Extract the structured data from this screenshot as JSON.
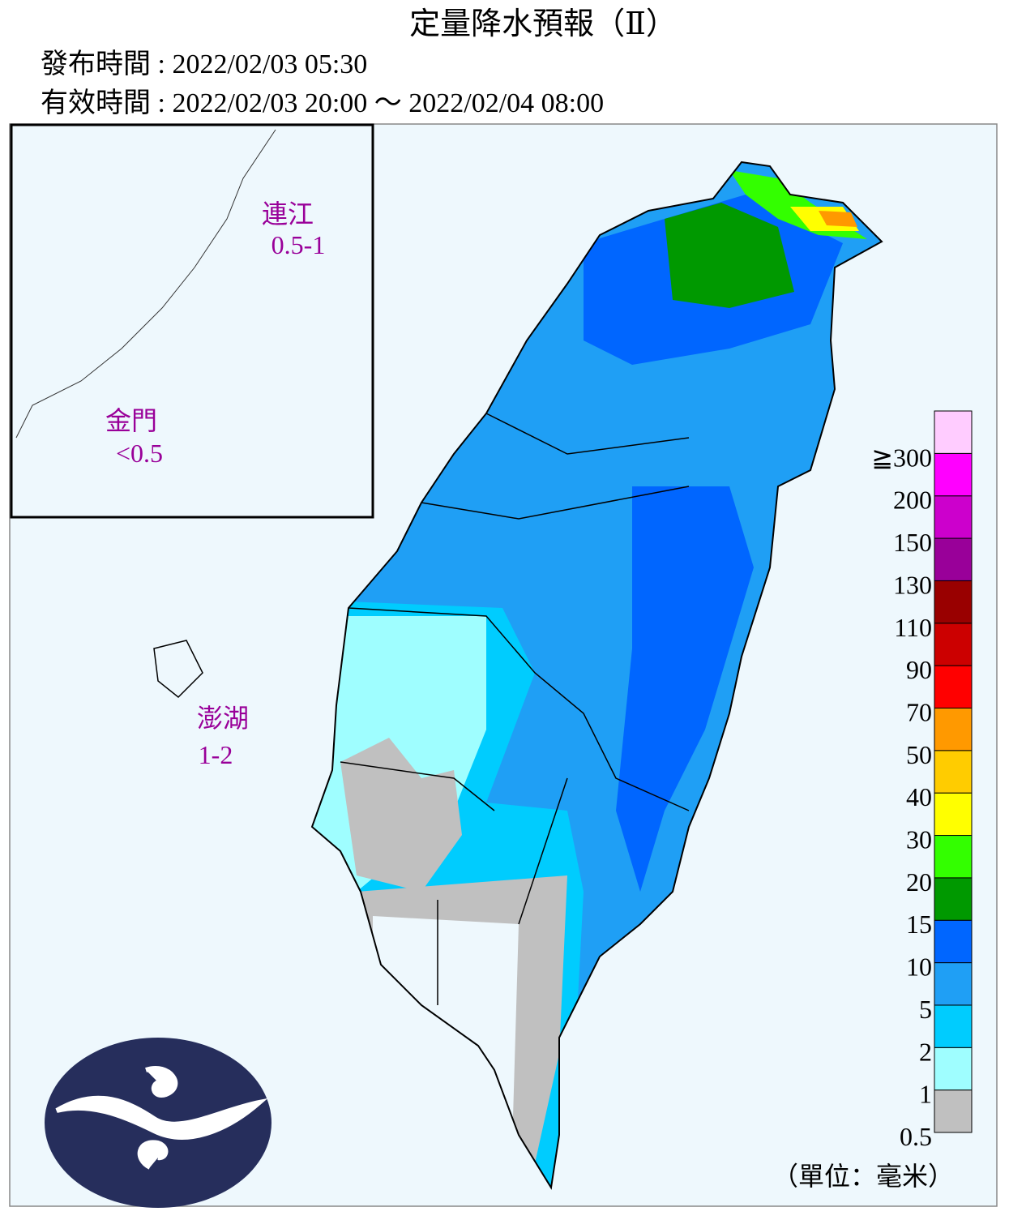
{
  "header": {
    "title": "定量降水預報（Ⅱ）",
    "issued": "發布時間 : 2022/02/03 05:30",
    "valid": "有效時間 : 2022/02/03 20:00 ～ 2022/02/04 08:00"
  },
  "regions": [
    {
      "name": "連江",
      "value": "0.5-1"
    },
    {
      "name": "金門",
      "value": "<0.5"
    },
    {
      "name": "澎湖",
      "value": "1-2"
    }
  ],
  "legend": {
    "labels": [
      "0.5",
      "1",
      "2",
      "5",
      "10",
      "15",
      "20",
      "30",
      "40",
      "50",
      "70",
      "90",
      "110",
      "130",
      "150",
      "200",
      "≧300"
    ],
    "colors": [
      "#c0c0c0",
      "#9ffeff",
      "#00ccfe",
      "#1f9ff5",
      "#0066ff",
      "#009900",
      "#33ff00",
      "#ffff00",
      "#ffcc00",
      "#ff9900",
      "#ff0000",
      "#cc0000",
      "#990000",
      "#990099",
      "#cc00cc",
      "#ff00ff",
      "#ffccff"
    ],
    "unit": "（單位：毫米）"
  }
}
